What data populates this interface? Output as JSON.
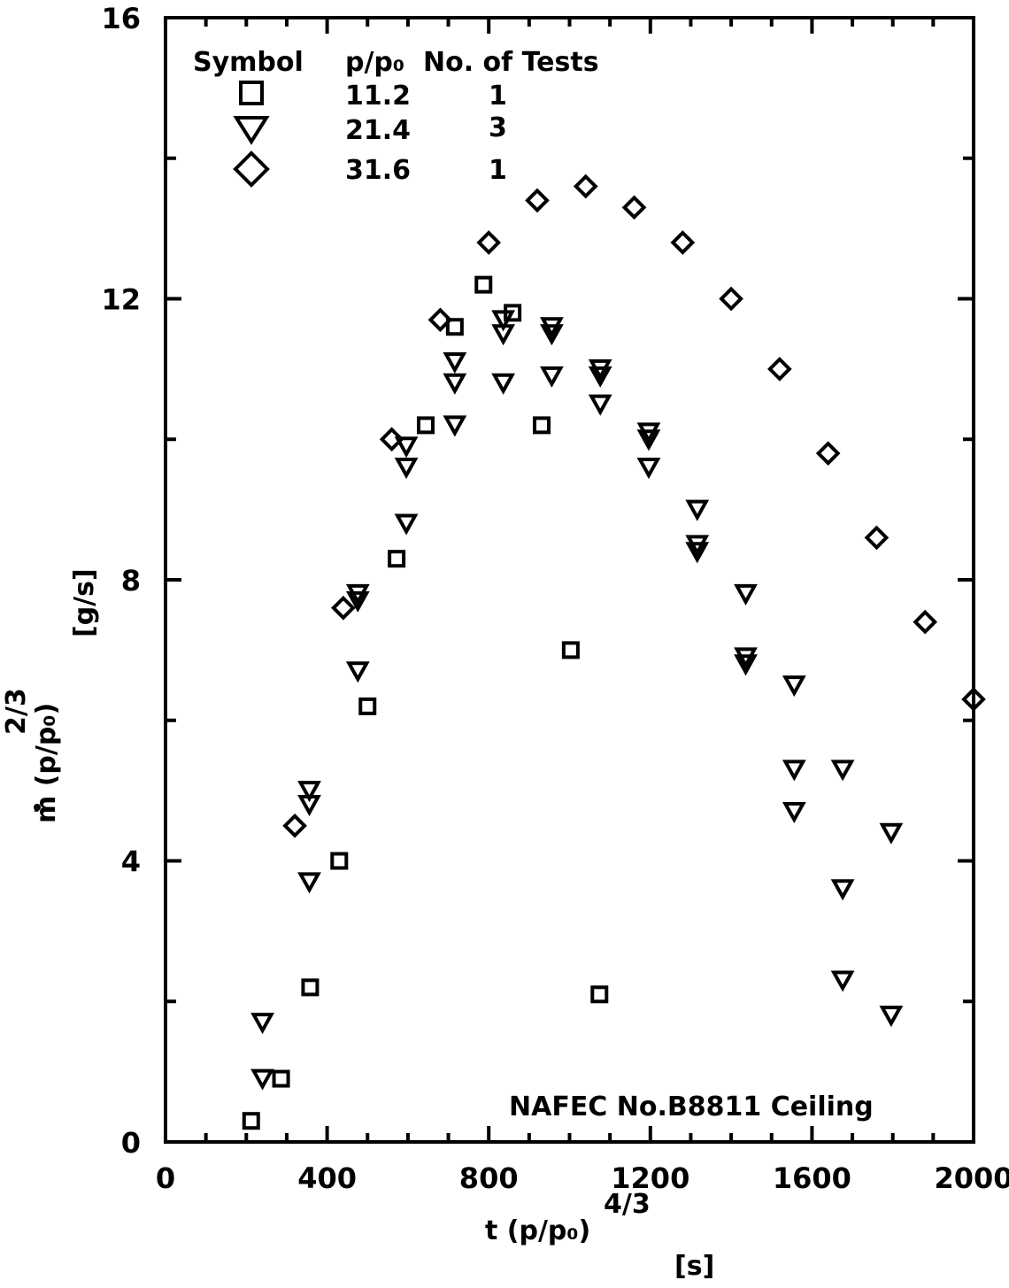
{
  "chart_data": {
    "type": "scatter",
    "xlim": [
      0,
      2000
    ],
    "ylim": [
      0,
      16
    ],
    "x_ticks": [
      "0",
      "400",
      "800",
      "1200",
      "1600",
      "2000"
    ],
    "y_ticks": [
      "0",
      "4",
      "8",
      "12",
      "16"
    ],
    "xlabel": "t (p/p₀)",
    "xlabel_exp": "4/3",
    "xlabel_unit": "[s]",
    "ylabel": "ṁ (p/p₀)",
    "ylabel_exp": "2/3",
    "ylabel_unit": "[g/s]",
    "annotation": "NAFEC No.B8811 Ceiling",
    "legend": {
      "headers": {
        "symbol": "Symbol",
        "ratio": "p/p₀",
        "tests": "No. of Tests"
      },
      "entries": [
        {
          "marker": "square",
          "ratio": "11.2",
          "tests": "1"
        },
        {
          "marker": "triangle-down",
          "ratio": "21.4",
          "tests": "3"
        },
        {
          "marker": "diamond",
          "ratio": "31.6",
          "tests": "1"
        }
      ]
    },
    "series": [
      {
        "marker": "square",
        "x": [
          212,
          286,
          358,
          430,
          500,
          572,
          644,
          716,
          787,
          859,
          931,
          1003,
          1074
        ],
        "y": [
          0.3,
          0.9,
          2.2,
          4.0,
          6.2,
          8.3,
          10.2,
          11.6,
          12.2,
          11.8,
          10.2,
          7.0,
          2.1
        ]
      },
      {
        "marker": "triangle-down",
        "x": [
          240,
          240,
          356,
          356,
          356,
          476,
          476,
          476,
          596,
          596,
          596,
          716,
          716,
          716,
          836,
          836,
          836,
          956,
          956,
          956,
          1076,
          1076,
          1076,
          1196,
          1196,
          1196,
          1316,
          1316,
          1316,
          1436,
          1436,
          1436,
          1556,
          1556,
          1556,
          1676,
          1676,
          1676,
          1796,
          1796
        ],
        "y": [
          1.7,
          0.9,
          5.0,
          4.8,
          3.7,
          7.8,
          7.7,
          6.7,
          9.9,
          9.6,
          8.8,
          11.1,
          10.8,
          10.2,
          11.7,
          11.5,
          10.8,
          11.6,
          11.5,
          10.9,
          11.0,
          10.9,
          10.5,
          10.1,
          10.0,
          9.6,
          9.0,
          8.5,
          8.4,
          7.8,
          6.9,
          6.8,
          6.5,
          5.3,
          4.7,
          5.3,
          3.6,
          2.3,
          4.4,
          1.8
        ]
      },
      {
        "marker": "diamond",
        "x": [
          320,
          440,
          560,
          680,
          800,
          920,
          1040,
          1160,
          1280,
          1400,
          1520,
          1640,
          1760,
          1880,
          2000
        ],
        "y": [
          4.5,
          7.6,
          10.0,
          11.7,
          12.8,
          13.4,
          13.6,
          13.3,
          12.8,
          12.0,
          11.0,
          9.8,
          8.6,
          7.4,
          6.3
        ]
      }
    ]
  }
}
